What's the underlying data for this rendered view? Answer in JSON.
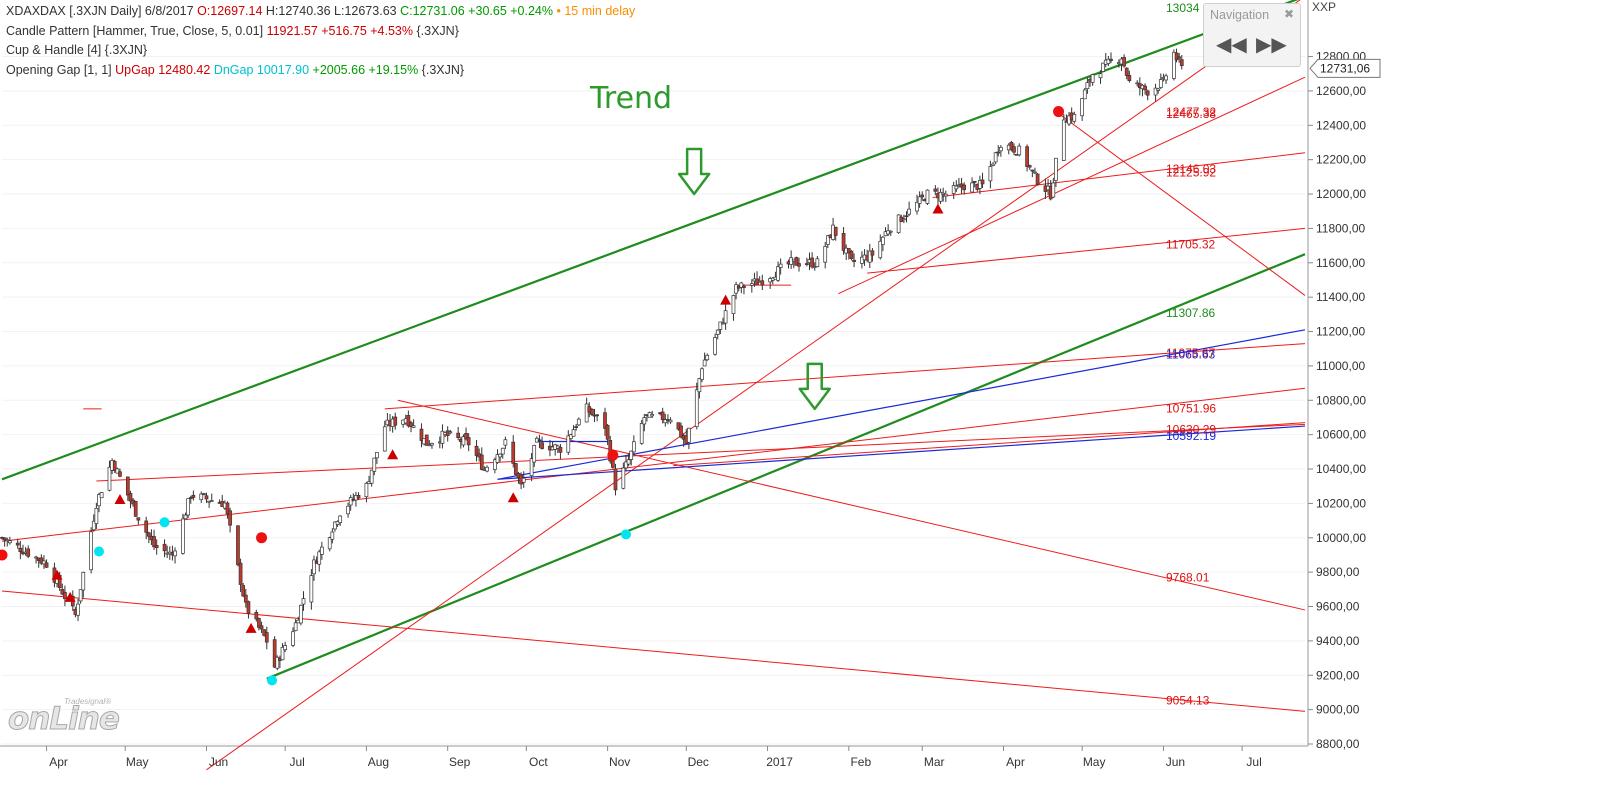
{
  "header": {
    "line1": {
      "symbol": "XDAXDAX [.3XJN Daily] 6/8/2017",
      "open": "O:12697.14",
      "high": "H:12740.36",
      "low": "L:12673.63",
      "close_change": "C:12731.06 +30.65 +0.24%",
      "bullet": "•",
      "delay": "15 min delay"
    },
    "line2": {
      "name": "Candle Pattern [Hammer, True, Close, 5, 0.01]",
      "value": "11921.57 +516.75 +4.53%",
      "source": "{.3XJN}"
    },
    "line3": {
      "name": "Cup & Handle [4] {.3XJN}"
    },
    "line4": {
      "name": "Opening Gap [1, 1]",
      "upgap": "UpGap 12480.42",
      "dngap": "DnGap 10017.90",
      "diff": "+2005.66 +19.15%",
      "source": "{.3XJN}"
    }
  },
  "navigation": {
    "title": "Navigation",
    "close_icon": "close-icon",
    "back_icon": "rewind-icon",
    "forward_icon": "fast-forward-icon"
  },
  "logo": {
    "big": "onLine",
    "small": "Tradesignal®"
  },
  "colors": {
    "up": "#ffffff",
    "down": "#c0392b",
    "wick": "#333333",
    "trend_green": "#1e8c1e",
    "red_line": "#ee1c1c",
    "blue_line": "#1a2ad6",
    "cyan": "#00e5f0",
    "hdr_green": "#009900",
    "hdr_red": "#cc0000",
    "hdr_cyan": "#00c0d0",
    "delay_orange": "#ff8c00"
  },
  "chart_data": {
    "type": "candlestick",
    "title": "",
    "annotation": "Trend",
    "price_axis": {
      "label": "XXP",
      "ylim": [
        8800,
        13100
      ],
      "ticks": [
        "8800,00",
        "9000,00",
        "9200,00",
        "9400,00",
        "9600,00",
        "9800,00",
        "10000,00",
        "10200,00",
        "10400,00",
        "10600,00",
        "10800,00",
        "11000,00",
        "11200,00",
        "11400,00",
        "11600,00",
        "11800,00",
        "12000,00",
        "12200,00",
        "12400,00",
        "12600,00",
        "12800,00"
      ],
      "tick_values": [
        8800,
        9000,
        9200,
        9400,
        9600,
        9800,
        10000,
        10200,
        10400,
        10600,
        10800,
        11000,
        11200,
        11400,
        11600,
        11800,
        12000,
        12200,
        12400,
        12600,
        12800
      ],
      "last_price_label": "12731,06",
      "last_price": 12731.06
    },
    "time_axis": {
      "labels": [
        "Apr",
        "May",
        "Jun",
        "Jul",
        "Aug",
        "Sep",
        "Oct",
        "Nov",
        "Dec",
        "2017",
        "Feb",
        "Mar",
        "Apr",
        "May",
        "Jun",
        "Jul"
      ],
      "dates": [
        "2016-04-01",
        "2016-05-01",
        "2016-06-01",
        "2016-07-01",
        "2016-08-01",
        "2016-09-01",
        "2016-10-01",
        "2016-11-01",
        "2016-12-01",
        "2017-01-01",
        "2017-02-01",
        "2017-03-01",
        "2017-04-01",
        "2017-05-01",
        "2017-06-01",
        "2017-07-01"
      ],
      "range": [
        "2016-03-15",
        "2017-07-25"
      ]
    },
    "anchors": [
      [
        "2016-03-15",
        10000
      ],
      [
        "2016-04-01",
        9850
      ],
      [
        "2016-04-12",
        9550
      ],
      [
        "2016-04-20",
        10200
      ],
      [
        "2016-04-26",
        10450
      ],
      [
        "2016-05-05",
        10150
      ],
      [
        "2016-05-12",
        9950
      ],
      [
        "2016-05-19",
        9900
      ],
      [
        "2016-05-26",
        10250
      ],
      [
        "2016-06-08",
        10200
      ],
      [
        "2016-06-16",
        9600
      ],
      [
        "2016-06-24",
        9400
      ],
      [
        "2016-06-27",
        9250
      ],
      [
        "2016-07-05",
        9500
      ],
      [
        "2016-07-12",
        9850
      ],
      [
        "2016-07-22",
        10150
      ],
      [
        "2016-08-01",
        10300
      ],
      [
        "2016-08-08",
        10650
      ],
      [
        "2016-08-16",
        10700
      ],
      [
        "2016-08-24",
        10550
      ],
      [
        "2016-08-31",
        10600
      ],
      [
        "2016-09-09",
        10550
      ],
      [
        "2016-09-15",
        10400
      ],
      [
        "2016-09-23",
        10550
      ],
      [
        "2016-09-29",
        10300
      ],
      [
        "2016-10-05",
        10550
      ],
      [
        "2016-10-14",
        10520
      ],
      [
        "2016-10-24",
        10750
      ],
      [
        "2016-10-31",
        10650
      ],
      [
        "2016-11-04",
        10300
      ],
      [
        "2016-11-09",
        10450
      ],
      [
        "2016-11-15",
        10700
      ],
      [
        "2016-11-25",
        10700
      ],
      [
        "2016-12-01",
        10550
      ],
      [
        "2016-12-07",
        11000
      ],
      [
        "2016-12-13",
        11200
      ],
      [
        "2016-12-20",
        11450
      ],
      [
        "2016-12-30",
        11500
      ],
      [
        "2017-01-10",
        11600
      ],
      [
        "2017-01-20",
        11600
      ],
      [
        "2017-01-26",
        11800
      ],
      [
        "2017-02-02",
        11600
      ],
      [
        "2017-02-10",
        11650
      ],
      [
        "2017-02-16",
        11800
      ],
      [
        "2017-02-24",
        11900
      ],
      [
        "2017-03-03",
        12000
      ],
      [
        "2017-03-10",
        12000
      ],
      [
        "2017-03-17",
        12050
      ],
      [
        "2017-03-24",
        12050
      ],
      [
        "2017-03-31",
        12300
      ],
      [
        "2017-04-07",
        12250
      ],
      [
        "2017-04-13",
        12100
      ],
      [
        "2017-04-19",
        12000
      ],
      [
        "2017-04-24",
        12450
      ],
      [
        "2017-04-28",
        12450
      ],
      [
        "2017-05-05",
        12700
      ],
      [
        "2017-05-10",
        12750
      ],
      [
        "2017-05-16",
        12800
      ],
      [
        "2017-05-19",
        12650
      ],
      [
        "2017-05-26",
        12600
      ],
      [
        "2017-06-01",
        12650
      ],
      [
        "2017-06-05",
        12820
      ],
      [
        "2017-06-08",
        12731
      ]
    ],
    "line_labels": [
      {
        "text": "13034",
        "color": "green",
        "value": 13034
      },
      {
        "text": "12477.32",
        "color": "red",
        "value": 12477.32
      },
      {
        "text": "12465.38",
        "color": "red",
        "value": 12465.38
      },
      {
        "text": "12146.03",
        "color": "red",
        "value": 12146.03
      },
      {
        "text": "12125.92",
        "color": "red",
        "value": 12125.92
      },
      {
        "text": "11705.32",
        "color": "red",
        "value": 11705.32
      },
      {
        "text": "11307.86",
        "color": "green",
        "value": 11307.86
      },
      {
        "text": "11075.67",
        "color": "red",
        "value": 11075.67
      },
      {
        "text": "11065.63",
        "color": "blue",
        "value": 11065.63
      },
      {
        "text": "10751.96",
        "color": "red",
        "value": 10751.96
      },
      {
        "text": "10630.29",
        "color": "red",
        "value": 10630.29
      },
      {
        "text": "10592.19",
        "color": "blue",
        "value": 10592.19
      },
      {
        "text": "9768.01",
        "color": "red",
        "value": 9768.01
      },
      {
        "text": "9054.13",
        "color": "red",
        "value": 9054.13
      }
    ],
    "trend_lines": [
      {
        "color": "green",
        "w": 2.2,
        "p1": [
          "2016-03-15",
          10340
        ],
        "p2": [
          "2017-07-25",
          13150
        ]
      },
      {
        "color": "green",
        "w": 2.2,
        "p1": [
          "2016-06-24",
          9180
        ],
        "p2": [
          "2017-07-25",
          11650
        ]
      },
      {
        "color": "red",
        "w": 1,
        "p1": [
          "2016-03-15",
          9690
        ],
        "p2": [
          "2017-07-25",
          8990
        ]
      },
      {
        "color": "red",
        "w": 1,
        "p1": [
          "2016-03-15",
          9980
        ],
        "p2": [
          "2017-07-25",
          10870
        ]
      },
      {
        "color": "red",
        "w": 1,
        "p1": [
          "2016-04-20",
          10330
        ],
        "p2": [
          "2017-07-25",
          10660
        ]
      },
      {
        "color": "red",
        "w": 1,
        "p1": [
          "2016-08-08",
          10750
        ],
        "p2": [
          "2017-07-25",
          11130
        ]
      },
      {
        "color": "red",
        "w": 1,
        "p1": [
          "2016-08-13",
          10800
        ],
        "p2": [
          "2017-07-25",
          9580
        ]
      },
      {
        "color": "red",
        "w": 1,
        "p1": [
          "2016-06-01",
          8650
        ],
        "p2": [
          "2017-07-25",
          13150
        ]
      },
      {
        "color": "red",
        "w": 1,
        "p1": [
          "2016-11-26",
          10420
        ],
        "p2": [
          "2017-07-25",
          10670
        ]
      },
      {
        "color": "red",
        "w": 1,
        "p1": [
          "2017-01-28",
          11420
        ],
        "p2": [
          "2017-07-25",
          12680
        ]
      },
      {
        "color": "red",
        "w": 1,
        "p1": [
          "2017-02-08",
          11540
        ],
        "p2": [
          "2017-07-25",
          11800
        ]
      },
      {
        "color": "red",
        "w": 1,
        "p1": [
          "2017-03-05",
          11980
        ],
        "p2": [
          "2017-07-25",
          12240
        ]
      },
      {
        "color": "red",
        "w": 1,
        "p1": [
          "2017-04-21",
          12480
        ],
        "p2": [
          "2017-07-25",
          11410
        ]
      },
      {
        "color": "red",
        "w": 1,
        "p1": [
          "2016-12-20",
          11470
        ],
        "p2": [
          "2017-01-10",
          11470
        ]
      },
      {
        "color": "red",
        "w": 1,
        "p1": [
          "2016-04-15",
          10750
        ],
        "p2": [
          "2016-04-22",
          10750
        ]
      },
      {
        "color": "blue",
        "w": 1.2,
        "p1": [
          "2016-09-20",
          10340
        ],
        "p2": [
          "2017-07-25",
          11210
        ]
      },
      {
        "color": "blue",
        "w": 1.2,
        "p1": [
          "2016-09-20",
          10340
        ],
        "p2": [
          "2017-07-25",
          10650
        ]
      },
      {
        "color": "blue",
        "w": 1.2,
        "p1": [
          "2016-10-05",
          10560
        ],
        "p2": [
          "2016-11-01",
          10560
        ]
      }
    ],
    "red_triangles": [
      [
        "2016-04-05",
        9780
      ],
      [
        "2016-04-10",
        9650
      ],
      [
        "2016-04-29",
        10220
      ],
      [
        "2016-06-18",
        9470
      ],
      [
        "2016-08-11",
        10480
      ],
      [
        "2016-09-26",
        10230
      ],
      [
        "2016-12-16",
        11380
      ],
      [
        "2017-03-07",
        11910
      ]
    ],
    "red_dots": [
      [
        "2016-03-15",
        9900
      ],
      [
        "2016-06-22",
        10000
      ],
      [
        "2016-11-03",
        10480
      ],
      [
        "2017-04-22",
        12480
      ]
    ],
    "cyan_dots": [
      [
        "2016-04-21",
        9920
      ],
      [
        "2016-05-16",
        10090
      ],
      [
        "2016-06-26",
        9170
      ],
      [
        "2016-11-08",
        10020
      ]
    ],
    "down_arrows": [
      [
        "2016-12-04",
        12000
      ],
      [
        "2017-01-19",
        10750
      ]
    ]
  }
}
